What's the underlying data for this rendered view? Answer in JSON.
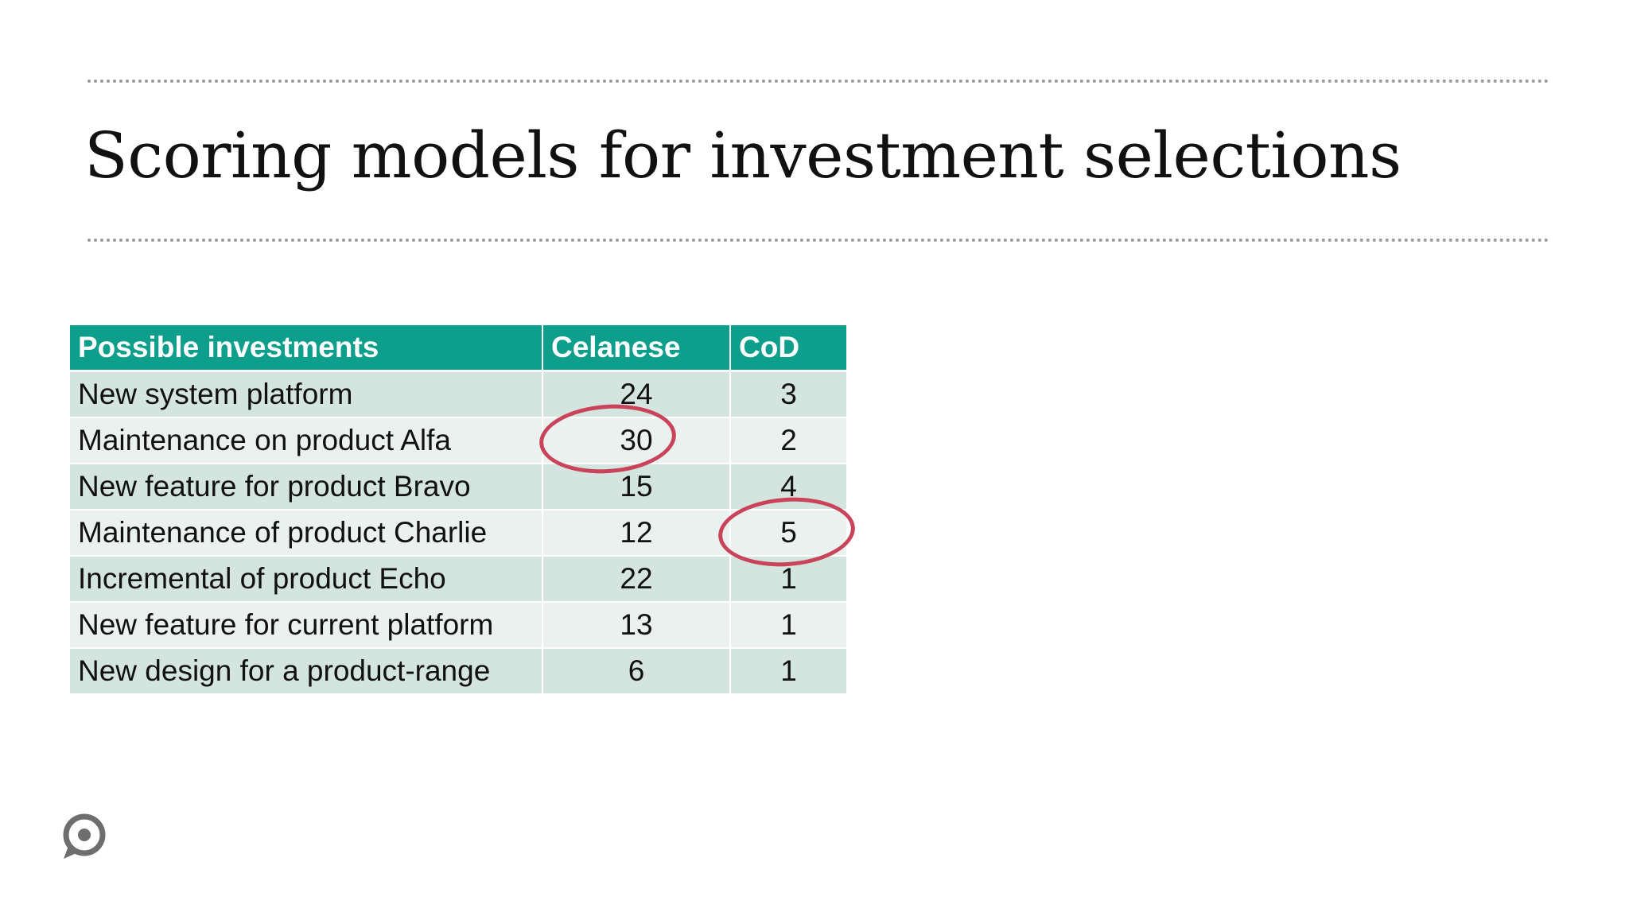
{
  "slide": {
    "title": "Scoring models for investment selections"
  },
  "table": {
    "headers": [
      "Possible investments",
      "Celanese",
      "CoD"
    ],
    "rows": [
      {
        "investment": "New system platform",
        "celanese": "24",
        "cod": "3"
      },
      {
        "investment": "Maintenance on product Alfa",
        "celanese": "30",
        "cod": "2"
      },
      {
        "investment": "New feature for product Bravo",
        "celanese": "15",
        "cod": "4"
      },
      {
        "investment": "Maintenance of product Charlie",
        "celanese": "12",
        "cod": "5"
      },
      {
        "investment": "Incremental of product Echo",
        "celanese": "22",
        "cod": "1"
      },
      {
        "investment": "New feature for current platform",
        "celanese": "13",
        "cod": "1"
      },
      {
        "investment": "New design for a product-range",
        "celanese": "6",
        "cod": "1"
      }
    ],
    "highlighted_cells": [
      {
        "row": "Maintenance on product Alfa",
        "column": "Celanese"
      },
      {
        "row": "Maintenance of product Charlie",
        "column": "CoD"
      }
    ]
  },
  "colors": {
    "header_bg": "#0e9e8c",
    "row_odd_bg": "#d4e4df",
    "row_even_bg": "#eaf1ee",
    "highlight_circle": "#c9445a",
    "rule": "#9a9a9a"
  },
  "icons": {
    "logo": "chat-bubble-logo-icon"
  }
}
